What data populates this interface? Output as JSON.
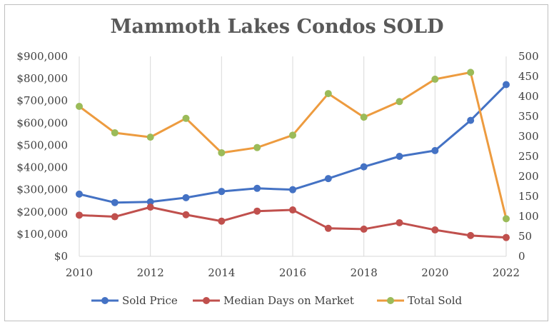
{
  "chart_data": {
    "type": "line",
    "title": "Mammoth Lakes Condos SOLD",
    "x": [
      2010,
      2011,
      2012,
      2013,
      2014,
      2015,
      2016,
      2017,
      2018,
      2019,
      2020,
      2021,
      2022
    ],
    "x_tick_labels": [
      "2010",
      "2012",
      "2014",
      "2016",
      "2018",
      "2020",
      "2022"
    ],
    "y_left_tick_labels": [
      "$0",
      "$100,000",
      "$200,000",
      "$300,000",
      "$400,000",
      "$500,000",
      "$600,000",
      "$700,000",
      "$800,000",
      "$900,000"
    ],
    "y_right_tick_labels": [
      "0",
      "50",
      "100",
      "150",
      "200",
      "250",
      "300",
      "350",
      "400",
      "450",
      "500"
    ],
    "ylim_left": [
      0,
      900000
    ],
    "ylim_right": [
      0,
      500
    ],
    "xlim": [
      2010,
      2022
    ],
    "grid": "vertical",
    "legend_position": "bottom",
    "series": [
      {
        "name": "Sold Price",
        "axis": "left",
        "color": "#4472C4",
        "values": [
          280000,
          242000,
          245000,
          264000,
          292000,
          306000,
          300000,
          350000,
          403000,
          450000,
          476000,
          612000,
          773000
        ]
      },
      {
        "name": "Median Days on Market",
        "axis": "right",
        "color": "#C0504D",
        "values": [
          103,
          99,
          123,
          104,
          88,
          113,
          116,
          70,
          68,
          84,
          66,
          52,
          47
        ]
      },
      {
        "name": "Total Sold",
        "axis": "right",
        "color": "#ED9B3F",
        "marker_color": "#9BBB59",
        "values": [
          375,
          309,
          298,
          345,
          259,
          272,
          303,
          407,
          348,
          387,
          443,
          460,
          94
        ]
      }
    ]
  }
}
